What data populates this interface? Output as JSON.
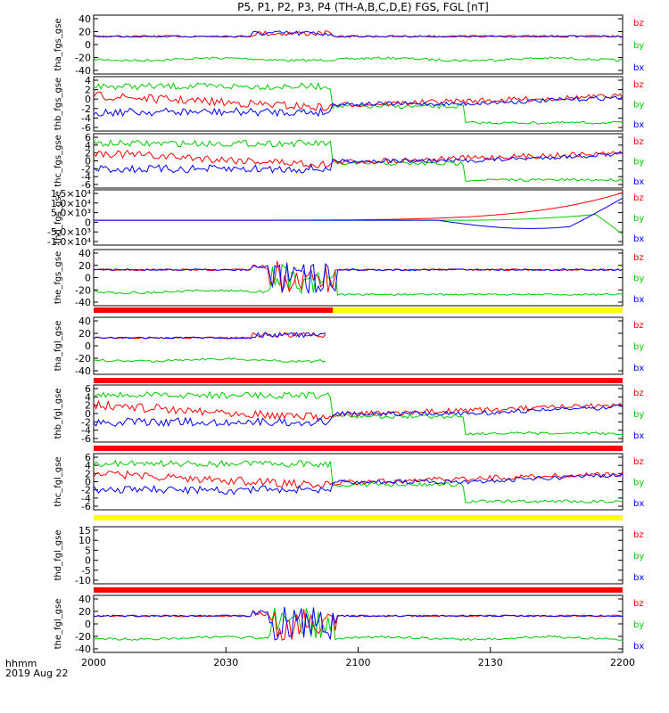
{
  "title": "P5, P1, P2, P3, P4 (TH-A,B,C,D,E) FGS, FGL [nT]",
  "time_label": "hhmm",
  "date_label": "2019 Aug 22",
  "colors": {
    "bz": "#ff0000",
    "by": "#00cc00",
    "bx": "#0000ff",
    "bar_red": "#ff0000",
    "bar_yellow": "#ffff00"
  },
  "chart_data": {
    "type": "line",
    "x_ticks": [
      "2000",
      "2030",
      "2100",
      "2130",
      "2200"
    ],
    "x_unit": "hhmm",
    "panels": [
      {
        "ylabel": "tha_fgs_gse",
        "yticks": [
          "40",
          "20",
          "0",
          "-20",
          "-40"
        ],
        "ylim": [
          -45,
          45
        ],
        "legend": [
          "bz",
          "by",
          "bx"
        ]
      },
      {
        "ylabel": "thb_fgs_gse",
        "yticks": [
          "4",
          "2",
          "0",
          "-2",
          "-4",
          "-6"
        ],
        "ylim": [
          -7,
          5
        ],
        "legend": [
          "bz",
          "by",
          "bx"
        ]
      },
      {
        "ylabel": "thc_fgs_gse",
        "yticks": [
          "6",
          "4",
          "2",
          "0",
          "-2",
          "-4",
          "-6"
        ],
        "ylim": [
          -7,
          7
        ],
        "legend": [
          "bz",
          "by",
          "bx"
        ]
      },
      {
        "ylabel": "thd_fgs_gse",
        "yticks": [
          "1.5×10⁴",
          "1.0×10⁴",
          "5.0×10³",
          "0",
          "-5.0×10³",
          "-1.0×10⁴"
        ],
        "ylim": [
          -12000,
          16000
        ],
        "legend": [
          "bz",
          "by",
          "bx"
        ]
      },
      {
        "ylabel": "the_fgs_gse",
        "yticks": [
          "40",
          "20",
          "0",
          "-20",
          "-40"
        ],
        "ylim": [
          -50,
          45
        ],
        "legend": [
          "bz",
          "by",
          "bx"
        ]
      },
      {
        "ylabel": "tha_fgl_gse",
        "yticks": [
          "40",
          "20",
          "0",
          "-20",
          "-40"
        ],
        "ylim": [
          -50,
          45
        ],
        "legend": [
          "bz",
          "by",
          "bx"
        ]
      },
      {
        "ylabel": "thb_fgl_gse",
        "yticks": [
          "6",
          "4",
          "2",
          "0",
          "-2",
          "-4",
          "-6"
        ],
        "ylim": [
          -7,
          7
        ],
        "legend": [
          "bz",
          "by",
          "bx"
        ]
      },
      {
        "ylabel": "thc_fgl_gse",
        "yticks": [
          "6",
          "4",
          "2",
          "0",
          "-2",
          "-4",
          "-6"
        ],
        "ylim": [
          -7,
          7
        ],
        "legend": [
          "bz",
          "by",
          "bx"
        ]
      },
      {
        "ylabel": "thd_fgl_gse",
        "yticks": [
          "15",
          "10",
          "5",
          "0",
          "-5",
          "-10"
        ],
        "ylim": [
          -13,
          18
        ],
        "legend": [
          "bz",
          "by",
          "bx"
        ]
      },
      {
        "ylabel": "the_fgl_gse",
        "yticks": [
          "40",
          "20",
          "0",
          "-20",
          "-40"
        ],
        "ylim": [
          -50,
          50
        ],
        "legend": [
          "bz",
          "by",
          "bx"
        ]
      }
    ]
  }
}
